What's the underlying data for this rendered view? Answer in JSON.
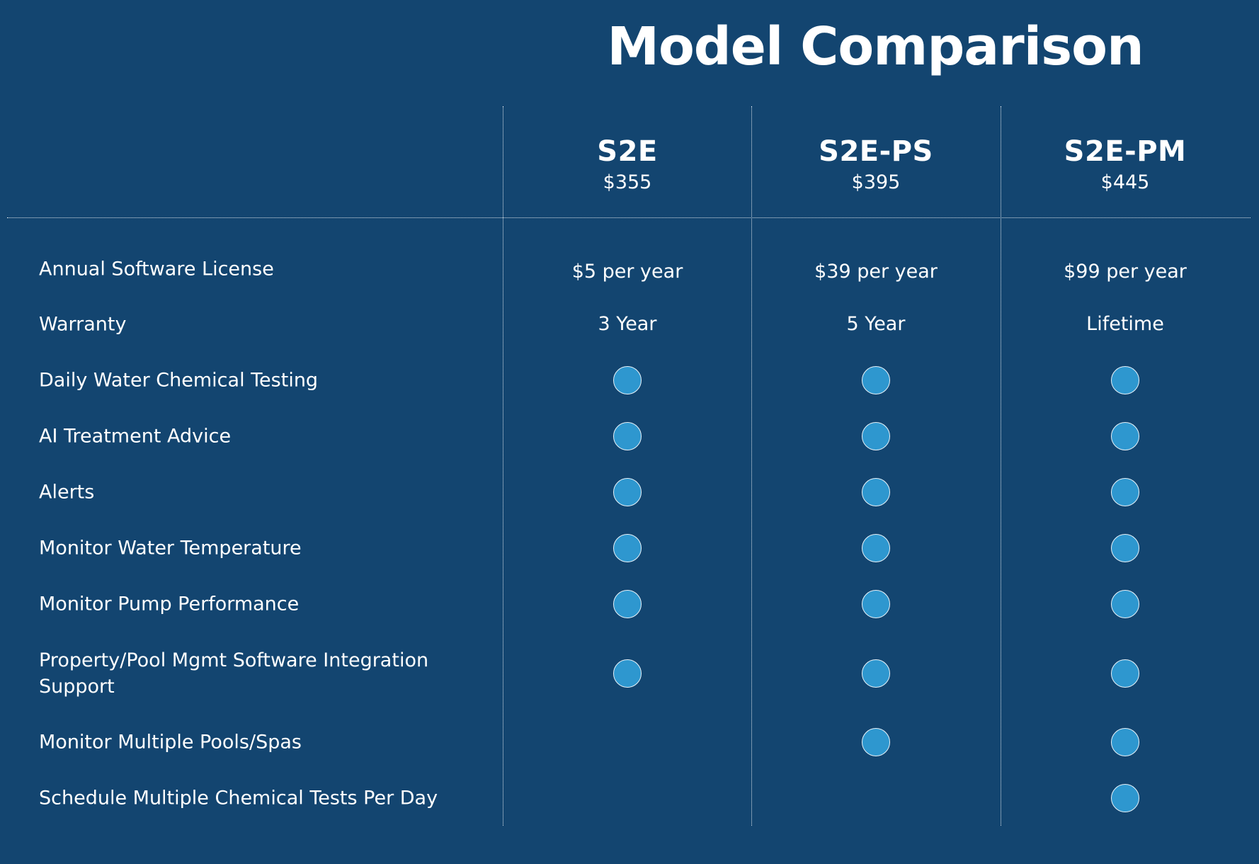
{
  "title": "Model Comparison",
  "models": [
    {
      "name": "S2E",
      "price": "$355"
    },
    {
      "name": "S2E-PS",
      "price": "$395"
    },
    {
      "name": "S2E-PM",
      "price": "$445"
    }
  ],
  "features": [
    {
      "label": "Annual Software License",
      "type": "text",
      "values": [
        "$5 per year",
        "$39 per year",
        "$99 per year"
      ]
    },
    {
      "label": "Warranty",
      "type": "text",
      "values": [
        "3 Year",
        "5 Year",
        "Lifetime"
      ]
    },
    {
      "label": "Daily Water Chemical Testing",
      "type": "check",
      "included": [
        true,
        true,
        true
      ]
    },
    {
      "label": "AI Treatment Advice",
      "type": "check",
      "included": [
        true,
        true,
        true
      ]
    },
    {
      "label": "Alerts",
      "type": "check",
      "included": [
        true,
        true,
        true
      ]
    },
    {
      "label": "Monitor Water Temperature",
      "type": "check",
      "included": [
        true,
        true,
        true
      ]
    },
    {
      "label": "Monitor Pump Performance",
      "type": "check",
      "included": [
        true,
        true,
        true
      ]
    },
    {
      "label": "Property/Pool Mgmt Software Integration Support",
      "type": "check",
      "included": [
        true,
        true,
        true
      ]
    },
    {
      "label": "Monitor Multiple Pools/Spas",
      "type": "check",
      "included": [
        false,
        true,
        true
      ]
    },
    {
      "label": "Schedule Multiple Chemical Tests Per Day",
      "type": "check",
      "included": [
        false,
        false,
        true
      ]
    }
  ],
  "colors": {
    "background": "#134570",
    "dot_fill": "#2e97cf",
    "dot_border": "#e8f3fa",
    "text": "#ffffff"
  }
}
